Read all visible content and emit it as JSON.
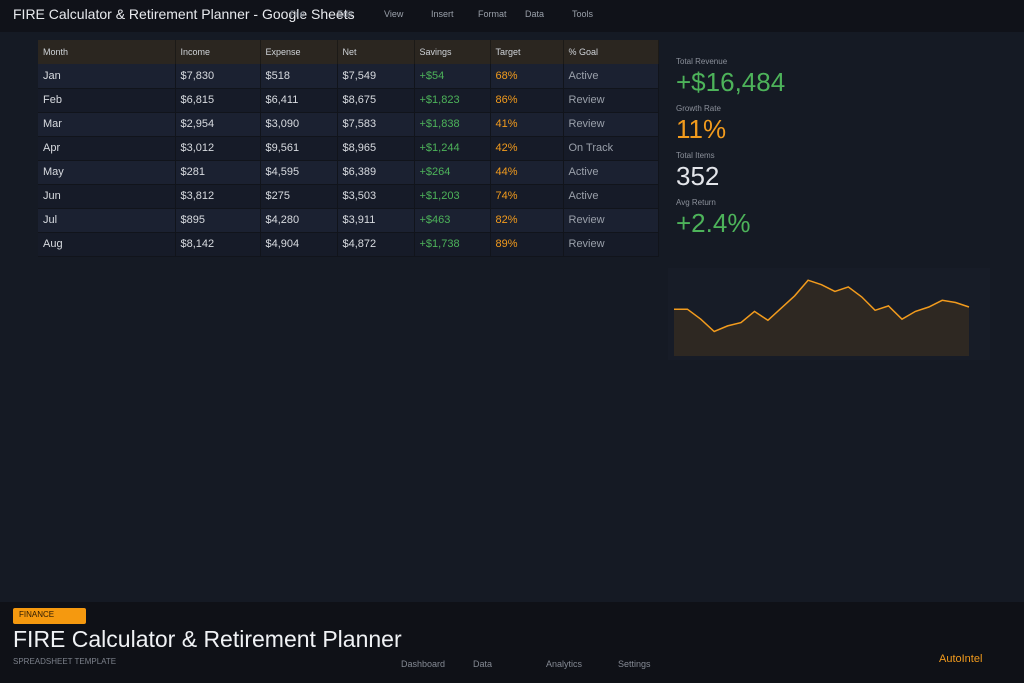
{
  "window": {
    "title": "FIRE Calculator & Retirement Planner - Google Sheets"
  },
  "menu": [
    "File",
    "Edit",
    "View",
    "Insert",
    "Format",
    "Data",
    "Tools"
  ],
  "table": {
    "headers": [
      "Month",
      "Income",
      "Expense",
      "Net",
      "Savings",
      "Target",
      "% Goal"
    ],
    "rows": [
      [
        "Jan",
        "$7,830",
        "$518",
        "$7,549",
        "+$54",
        "68%",
        "Active"
      ],
      [
        "Feb",
        "$6,815",
        "$6,411",
        "$8,675",
        "+$1,823",
        "86%",
        "Review"
      ],
      [
        "Mar",
        "$2,954",
        "$3,090",
        "$7,583",
        "+$1,838",
        "41%",
        "Review"
      ],
      [
        "Apr",
        "$3,012",
        "$9,561",
        "$8,965",
        "+$1,244",
        "42%",
        "On Track"
      ],
      [
        "May",
        "$281",
        "$4,595",
        "$6,389",
        "+$264",
        "44%",
        "Active"
      ],
      [
        "Jun",
        "$3,812",
        "$275",
        "$3,503",
        "+$1,203",
        "74%",
        "Active"
      ],
      [
        "Jul",
        "$895",
        "$4,280",
        "$3,911",
        "+$463",
        "82%",
        "Review"
      ],
      [
        "Aug",
        "$8,142",
        "$4,904",
        "$4,872",
        "+$1,738",
        "89%",
        "Review"
      ]
    ]
  },
  "kpis": [
    {
      "label": "Total Revenue",
      "value": "+$16,484",
      "color": "green"
    },
    {
      "label": "Growth Rate",
      "value": "11%",
      "color": "orange"
    },
    {
      "label": "Total Items",
      "value": "352",
      "color": "white"
    },
    {
      "label": "Avg Return",
      "value": "+2.4%",
      "color": "green"
    }
  ],
  "sparkline": {
    "stroke": "#f29b1d",
    "fill": "#2e2822",
    "values": [
      42,
      42,
      33,
      22,
      27,
      30,
      40,
      32,
      43,
      54,
      68,
      64,
      58,
      62,
      53,
      41,
      45,
      33,
      40,
      44,
      50,
      48,
      44
    ]
  },
  "footer": {
    "badge": "FINANCE",
    "title": "FIRE Calculator & Retirement Planner",
    "subtitle": "SPREADSHEET TEMPLATE",
    "nav": [
      "Dashboard",
      "Data",
      "Analytics",
      "Settings"
    ],
    "brand": "AutoIntel"
  }
}
